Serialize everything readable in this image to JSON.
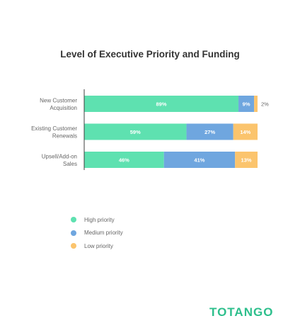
{
  "chart_data": {
    "type": "bar",
    "orientation": "horizontal",
    "stacked": true,
    "title": "Level of Executive Priority and Funding",
    "categories": [
      [
        "New Customer",
        "Acquisition"
      ],
      [
        "Existing Customer",
        "Renewals"
      ],
      [
        "Upsell/Add-on",
        "Sales"
      ]
    ],
    "series": [
      {
        "name": "High priority",
        "color": "#5ee1b0",
        "values": [
          89,
          59,
          46
        ],
        "labels": [
          "89%",
          "59%",
          "46%"
        ]
      },
      {
        "name": "Medium priority",
        "color": "#6fa6df",
        "values": [
          9,
          27,
          41
        ],
        "labels": [
          "9%",
          "27%",
          "41%"
        ]
      },
      {
        "name": "Low priority",
        "color": "#fbc46d",
        "values": [
          2,
          14,
          13
        ],
        "labels": [
          "2%",
          "14%",
          "13%"
        ]
      }
    ],
    "xlim": [
      0,
      100
    ],
    "grid": false,
    "legend_position": "bottom-left"
  },
  "logo": {
    "text": "TOTANGO"
  }
}
